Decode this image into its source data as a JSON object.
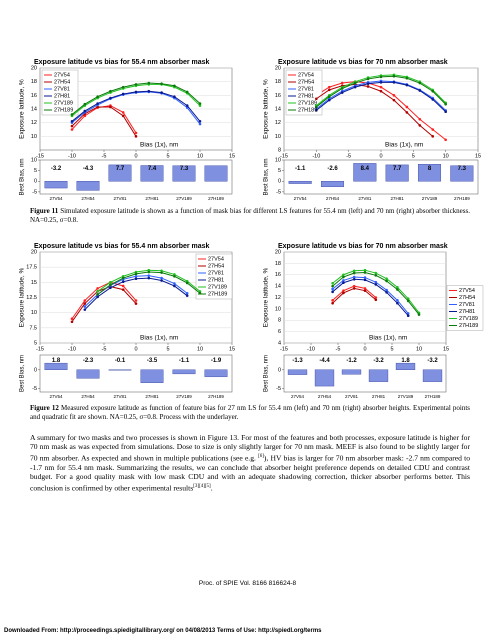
{
  "figures": [
    {
      "label": "Figure 11",
      "caption": "Simulated exposure latitude is shown as a function of mask bias for different LS features for 55.4 nm (left) and 70 nm (right) absorber thickness. NA=0.25, σ=0.8.",
      "charts": [
        {
          "type": "line",
          "title": "Exposure latitude vs bias for 55.4 nm absorber mask",
          "ylabel": "Exposure latitude, %",
          "xlabel": "Bias (1x), nm",
          "legend": "upper left",
          "xlim": [
            -15,
            15
          ],
          "xticks": [
            -15,
            -10,
            -5,
            0,
            5,
            10,
            15
          ],
          "ylim": [
            8,
            20
          ],
          "yticks": [
            10,
            12,
            14,
            16,
            18,
            20
          ],
          "x": [
            -10,
            -8,
            -6,
            -4,
            -2,
            0,
            2,
            4,
            6,
            8,
            10
          ],
          "series": [
            {
              "name": "27V54",
              "color": "#ff2020",
              "values": [
                11,
                13,
                14.2,
                14.5,
                13.5,
                10.5,
                null,
                null,
                null,
                null,
                null
              ]
            },
            {
              "name": "27H54",
              "color": "#b00000",
              "values": [
                11.5,
                13.3,
                14.3,
                14.3,
                13,
                10,
                null,
                null,
                null,
                null,
                null
              ]
            },
            {
              "name": "27V81",
              "color": "#3060ff",
              "values": [
                12,
                13.5,
                14.6,
                15.5,
                16.1,
                16.4,
                16.5,
                16.3,
                15.6,
                14.2,
                11.8
              ]
            },
            {
              "name": "27H81",
              "color": "#0a1a90",
              "values": [
                12.2,
                13.7,
                14.8,
                15.6,
                16.2,
                16.5,
                16.6,
                16.4,
                15.8,
                14.5,
                12.2
              ]
            },
            {
              "name": "27V189",
              "color": "#20c020",
              "values": [
                13,
                14.5,
                15.6,
                16.4,
                17,
                17.4,
                17.6,
                17.6,
                17.2,
                16.3,
                14.5
              ]
            },
            {
              "name": "27H189",
              "color": "#0a7a0a",
              "values": [
                13.2,
                14.7,
                15.8,
                16.6,
                17.2,
                17.6,
                17.8,
                17.7,
                17.4,
                16.5,
                14.8
              ]
            }
          ]
        },
        {
          "type": "bar",
          "ylabel": "Best Bias, nm",
          "ylim": [
            -6,
            10
          ],
          "yticks": [
            -5,
            0,
            5,
            10
          ],
          "color": "#8090e0",
          "categories": [
            "27V54",
            "27H54",
            "27V81",
            "27H81",
            "27V189",
            "27H189"
          ],
          "values": [
            -3.2,
            -4.3,
            7.7,
            7.4,
            7.3,
            7.3
          ],
          "value_labels": [
            "-3.2",
            "-4.3",
            "7.7",
            "7.4",
            "7.3",
            null
          ]
        },
        {
          "type": "line",
          "title": "Exposure latitude vs bias for 70 nm absorber mask",
          "ylabel": "Exposure latitude, %",
          "xlabel": "Bias (1x), nm",
          "legend": "upper left",
          "xlim": [
            -15,
            15
          ],
          "xticks": [
            -15,
            -10,
            -5,
            0,
            5,
            10,
            15
          ],
          "ylim": [
            8,
            20
          ],
          "yticks": [
            8,
            10,
            12,
            14,
            16,
            18,
            20
          ],
          "x": [
            -10,
            -8,
            -6,
            -4,
            -2,
            0,
            2,
            4,
            6,
            8,
            10
          ],
          "series": [
            {
              "name": "27V54",
              "color": "#ff2020",
              "values": [
                16,
                17.2,
                17.8,
                18,
                17.8,
                17.2,
                16,
                14.3,
                12.5,
                11,
                9.5
              ]
            },
            {
              "name": "27H54",
              "color": "#b00000",
              "values": [
                15.5,
                16.8,
                17.4,
                17.6,
                17.3,
                16.6,
                15.3,
                13.5,
                11.6,
                10,
                null
              ]
            },
            {
              "name": "27V81",
              "color": "#3060ff",
              "values": [
                14,
                15.5,
                16.6,
                17.4,
                17.9,
                18.1,
                18,
                17.6,
                16.8,
                15.6,
                13.8
              ]
            },
            {
              "name": "27H81",
              "color": "#0a1a90",
              "values": [
                13.8,
                15.3,
                16.4,
                17.2,
                17.7,
                17.9,
                17.9,
                17.5,
                16.7,
                15.4,
                13.6
              ]
            },
            {
              "name": "27V189",
              "color": "#20c020",
              "values": [
                14.5,
                16,
                17.2,
                18,
                18.6,
                18.9,
                19,
                18.7,
                18,
                16.8,
                14.9
              ]
            },
            {
              "name": "27H189",
              "color": "#0a7a0a",
              "values": [
                14.3,
                15.8,
                17,
                17.8,
                18.4,
                18.7,
                18.8,
                18.5,
                17.8,
                16.6,
                14.7
              ]
            }
          ]
        },
        {
          "type": "bar",
          "ylabel": "Best Bias, nm",
          "ylim": [
            -6,
            10
          ],
          "yticks": [
            -5,
            0,
            5,
            10
          ],
          "color": "#8090e0",
          "categories": [
            "27V54",
            "27H54",
            "27V81",
            "27H81",
            "27V189",
            "27H189"
          ],
          "values": [
            -1.1,
            -2.6,
            8.4,
            7.7,
            8,
            7.3
          ],
          "value_labels": [
            "-1.1",
            "-2.6",
            "8.4",
            "7.7",
            "8",
            "7.3"
          ]
        }
      ]
    },
    {
      "label": "Figure 12",
      "caption": "Measured exposure latitude as function of feature bias for 27 nm LS for 55.4 nm (left) and 70 nm (right) absorber heights. Experimental points and quadratic fit are shown. NA=0.25, σ=0.8. Process with the underlayer.",
      "charts": [
        {
          "type": "line",
          "title": "Exposure latitude vs bias for 55.4 nm absorber mask",
          "ylabel": "Exposure latitude, %",
          "xlabel": "Bias (1x), nm",
          "legend": "upper right",
          "xlim": [
            -15,
            15
          ],
          "xticks": [
            -15,
            -10,
            -5,
            0,
            5,
            10,
            15
          ],
          "ylim": [
            5,
            20
          ],
          "yticks": [
            5,
            7.5,
            10,
            12.5,
            15,
            17.5,
            20
          ],
          "x": [
            -10,
            -8,
            -6,
            -4,
            -2,
            0,
            2,
            4,
            6,
            8,
            10
          ],
          "series": [
            {
              "name": "27V54",
              "color": "#ff2020",
              "values": [
                9,
                12,
                14,
                15,
                14.4,
                12,
                null,
                null,
                null,
                null,
                null
              ]
            },
            {
              "name": "27H54",
              "color": "#b00000",
              "values": [
                8.5,
                11.5,
                13.5,
                14.3,
                13.8,
                11.5,
                null,
                null,
                null,
                null,
                null
              ]
            },
            {
              "name": "27V81",
              "color": "#3060ff",
              "values": [
                null,
                11,
                13,
                14.5,
                15.5,
                16,
                16.1,
                15.7,
                14.8,
                13.2,
                null
              ]
            },
            {
              "name": "27H81",
              "color": "#0a1a90",
              "values": [
                null,
                10.5,
                12.6,
                14.1,
                15.1,
                15.6,
                15.7,
                15.3,
                14.4,
                12.8,
                null
              ]
            },
            {
              "name": "27V189",
              "color": "#20c020",
              "values": [
                null,
                null,
                13.5,
                15,
                16,
                16.7,
                17,
                16.9,
                16.3,
                15.2,
                13.5
              ]
            },
            {
              "name": "27H189",
              "color": "#0a7a0a",
              "values": [
                null,
                null,
                13,
                14.6,
                15.7,
                16.4,
                16.7,
                16.6,
                16,
                14.9,
                13.2
              ]
            }
          ]
        },
        {
          "type": "bar",
          "ylabel": "Best Bias, nm",
          "ylim": [
            -6,
            4
          ],
          "yticks": [
            -5,
            0
          ],
          "color": "#8090e0",
          "categories": [
            "27V54",
            "27H54",
            "27V81",
            "27H81",
            "27V189",
            "27H189"
          ],
          "values": [
            1.8,
            -2.3,
            -0.1,
            -3.5,
            -1.1,
            -1.9
          ],
          "value_labels": [
            "1.8",
            "-2.3",
            "-0.1",
            "-3.5",
            "-1.1",
            "-1.9"
          ]
        },
        {
          "type": "line",
          "title": "Exposure latitude vs bias for 70 nm absorber mask",
          "ylabel": "Exposure latitude, %",
          "xlabel": "Bias (1x), nm",
          "legend": "right",
          "xlim": [
            -15,
            15
          ],
          "xticks": [
            -15,
            -10,
            -5,
            0,
            5,
            10,
            15
          ],
          "ylim": [
            4,
            20
          ],
          "yticks": [
            4,
            6,
            8,
            10,
            12,
            14,
            16,
            18,
            20
          ],
          "x": [
            -10,
            -8,
            -6,
            -4,
            -2,
            0,
            2,
            4,
            6,
            8,
            10
          ],
          "series": [
            {
              "name": "27V54",
              "color": "#ff2020",
              "values": [
                null,
                null,
                11.5,
                13.2,
                14,
                13.6,
                12,
                null,
                null,
                null,
                null
              ]
            },
            {
              "name": "27H54",
              "color": "#b00000",
              "values": [
                null,
                null,
                11,
                12.8,
                13.6,
                13.2,
                11.6,
                null,
                null,
                null,
                null
              ]
            },
            {
              "name": "27V81",
              "color": "#3060ff",
              "values": [
                null,
                null,
                13.5,
                15,
                15.6,
                15.5,
                14.7,
                13.3,
                11.5,
                9.2,
                null
              ]
            },
            {
              "name": "27H81",
              "color": "#0a1a90",
              "values": [
                null,
                null,
                13,
                14.6,
                15.2,
                15.1,
                14.3,
                12.9,
                11,
                8.8,
                null
              ]
            },
            {
              "name": "27V189",
              "color": "#20c020",
              "values": [
                null,
                null,
                14.5,
                16,
                16.7,
                16.8,
                16.3,
                15.3,
                13.8,
                11.8,
                9.3
              ]
            },
            {
              "name": "27H189",
              "color": "#0a7a0a",
              "values": [
                null,
                null,
                14,
                15.6,
                16.3,
                16.4,
                15.9,
                14.9,
                13.4,
                11.4,
                9
              ]
            }
          ]
        },
        {
          "type": "bar",
          "ylabel": "Best Bias, nm",
          "ylim": [
            -6,
            4
          ],
          "yticks": [
            -5,
            0
          ],
          "color": "#8090e0",
          "categories": [
            "27V54",
            "27H54",
            "27V81",
            "27H81",
            "27V189",
            "27H189"
          ],
          "values": [
            -1.3,
            -4.4,
            -1.2,
            -3.2,
            1.8,
            -3.2
          ],
          "value_labels": [
            "-1.3",
            "-4.4",
            "-1.2",
            "-3.2",
            "1.8",
            "-3.2"
          ]
        }
      ]
    }
  ],
  "paragraph": {
    "text_1": "A summary for two masks and two processes is shown in Figure 13. For most of the features and both processes, exposure latitude is higher for 70 nm mask as was expected from simulations. Dose to size is only slightly larger for 70 nm mask. MEEF is also found to be slightly larger for 70 nm absorber. As expected and shown in multiple publications (see e.g. ",
    "ref_1": "[6]",
    "text_2": "), HV bias is larger for 70 nm absorber mask: -2.7 nm compared to -1.7 nm for 55.4 nm mask. Summarizing the results, we can conclude that absorber height preference depends on detailed CDU and contrast budget. For a good quality mask with low mask CDU and with an adequate shadowing correction, thicker absorber performs better. This conclusion is confirmed by other experimental results",
    "ref_2": "[3][4][5]",
    "text_3": "."
  },
  "footer": {
    "proc": "Proc. of SPIE Vol. 8166  816624-8",
    "download": "Downloaded From: http://proceedings.spiedigitallibrary.org/ on 04/08/2013 Terms of Use: http://spiedl.org/terms"
  }
}
